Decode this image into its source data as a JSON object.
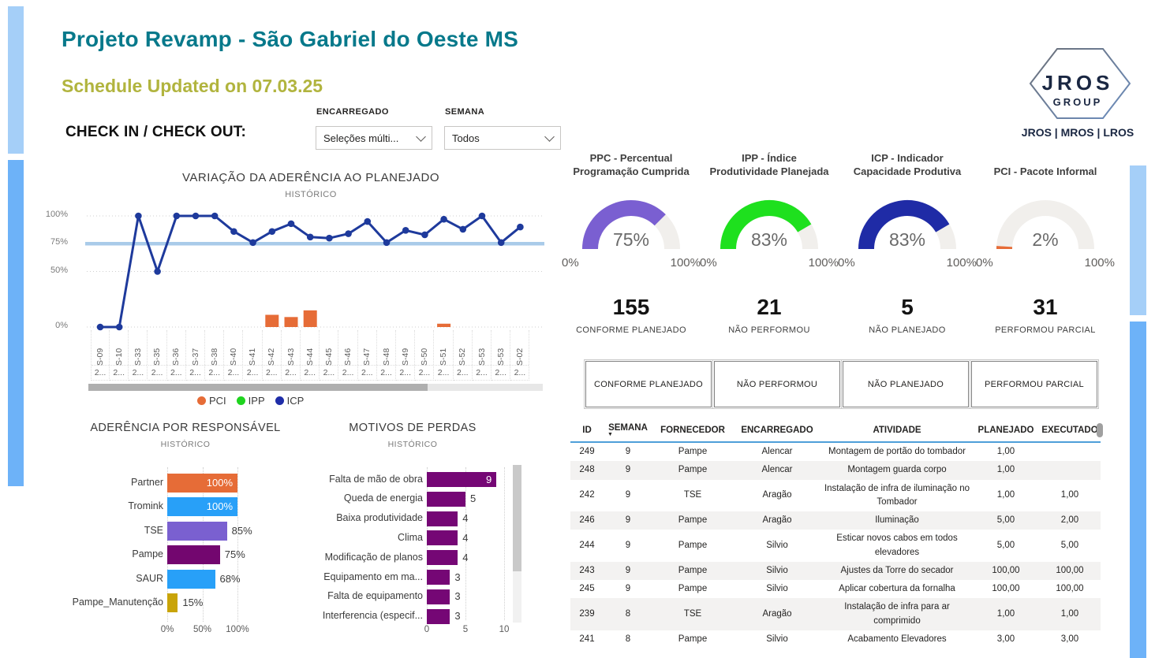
{
  "header": {
    "title": "Projeto Revamp - São Gabriel do Oeste MS",
    "subtitle": "Schedule Updated on 07.03.25",
    "check_label": "CHECK IN / CHECK OUT:"
  },
  "filters": [
    {
      "label": "ENCARREGADO",
      "value": "Seleções múlti..."
    },
    {
      "label": "SEMANA",
      "value": "Todos"
    }
  ],
  "logo": {
    "line1": "JROS",
    "line2": "GROUP",
    "line3": "JROS | MROS | LROS"
  },
  "chart_data": [
    {
      "type": "line",
      "title": "VARIAÇÃO DA ADERÊNCIA AO PLANEJADO",
      "subtitle": "HISTÓRICO",
      "categories": [
        "S-09",
        "S-10",
        "S-33",
        "S-35",
        "S-36",
        "S-37",
        "S-38",
        "S-40",
        "S-41",
        "S-42",
        "S-43",
        "S-44",
        "S-45",
        "S-46",
        "S-47",
        "S-48",
        "S-49",
        "S-50",
        "S-51",
        "S-52",
        "S-53",
        "S-53",
        "S-02"
      ],
      "category_sublabel": "2...",
      "series": [
        {
          "name": "ICP",
          "type": "line",
          "color": "#1E3A9C",
          "values": [
            0,
            0,
            100,
            50,
            100,
            100,
            100,
            86,
            76,
            86,
            93,
            81,
            80,
            84,
            95,
            76,
            87,
            83,
            97,
            88,
            100,
            76,
            90
          ]
        },
        {
          "name": "PCI",
          "type": "bar",
          "color": "#E66C37",
          "values": [
            null,
            null,
            null,
            null,
            null,
            null,
            null,
            null,
            null,
            11,
            9,
            15,
            null,
            null,
            null,
            null,
            null,
            null,
            3,
            null,
            null,
            null,
            null
          ]
        },
        {
          "name": "IPP",
          "type": "line",
          "color": "#1FD41F",
          "values": []
        }
      ],
      "legend": [
        {
          "label": "PCI",
          "color": "#E66C37"
        },
        {
          "label": "IPP",
          "color": "#1FD41F"
        },
        {
          "label": "ICP",
          "color": "#1F2DA8"
        }
      ],
      "yticks": [
        {
          "value": 100,
          "label": "100%"
        },
        {
          "value": 50,
          "label": "50%"
        },
        {
          "value": 0,
          "label": "0%"
        }
      ],
      "ref_line": {
        "value": 75,
        "label": "75%",
        "color": "#A9CBE9"
      },
      "ylim": [
        0,
        100
      ]
    },
    {
      "type": "bar",
      "orientation": "horizontal",
      "title": "ADERÊNCIA POR RESPONSÁVEL",
      "subtitle": "HISTÓRICO",
      "categories": [
        "Partner",
        "Tromink",
        "TSE",
        "Pampe",
        "SAUR",
        "Pampe_Manutenção"
      ],
      "values": [
        100,
        100,
        85,
        75,
        68,
        15
      ],
      "value_labels": [
        "100%",
        "100%",
        "85%",
        "75%",
        "68%",
        "15%"
      ],
      "bar_colors": [
        "#E66C37",
        "#28A0F8",
        "#7A60D0",
        "#73066F",
        "#28A0F8",
        "#C9A408"
      ],
      "xticks": [
        {
          "value": 0,
          "label": "0%"
        },
        {
          "value": 50,
          "label": "50%"
        },
        {
          "value": 100,
          "label": "100%"
        }
      ],
      "xlim": [
        0,
        100
      ],
      "inside_label_indexes": [
        0,
        1
      ]
    },
    {
      "type": "bar",
      "orientation": "horizontal",
      "title": "MOTIVOS DE PERDAS",
      "subtitle": "HISTÓRICO",
      "categories": [
        "Falta de mão de obra",
        "Queda de energia",
        "Baixa produtividade",
        "Clima",
        "Modificação de planos",
        "Equipamento em ma...",
        "Falta de equipamento",
        "Interferencia (especif..."
      ],
      "values": [
        9,
        5,
        4,
        4,
        4,
        3,
        3,
        3
      ],
      "value_labels": [
        "9",
        "5",
        "4",
        "4",
        "4",
        "3",
        "3",
        "3"
      ],
      "bar_colors": [
        "#750775",
        "#750775",
        "#750775",
        "#750775",
        "#750775",
        "#750775",
        "#750775",
        "#750775"
      ],
      "xticks": [
        {
          "value": 0,
          "label": "0"
        },
        {
          "value": 5,
          "label": "5"
        },
        {
          "value": 10,
          "label": "10"
        }
      ],
      "xlim": [
        0,
        10
      ],
      "inside_label_indexes": [
        0
      ]
    }
  ],
  "gauges": [
    {
      "title_line1": "PPC - Percentual",
      "title_line2": "Programação Cumprida",
      "value": 75,
      "value_label": "75%",
      "color": "#7A5FD1",
      "min_label": "0%",
      "max_label": "100%"
    },
    {
      "title_line1": "IPP - Índice",
      "title_line2": "Produtividade Planejada",
      "value": 83,
      "value_label": "83%",
      "color": "#1EE01E",
      "min_label": "0%",
      "max_label": "100%"
    },
    {
      "title_line1": "ICP - Indicador",
      "title_line2": "Capacidade Produtiva",
      "value": 83,
      "value_label": "83%",
      "color": "#1F2BA6",
      "min_label": "0%",
      "max_label": "100%"
    },
    {
      "title_line1": "",
      "title_line2": "PCI - Pacote Informal",
      "value": 2,
      "value_label": "2%",
      "color": "#E66C37",
      "min_label": "0%",
      "max_label": "100%"
    }
  ],
  "cards": [
    {
      "value": "155",
      "label": "CONFORME PLANEJADO"
    },
    {
      "value": "21",
      "label": "NÃO PERFORMOU"
    },
    {
      "value": "5",
      "label": "NÃO PLANEJADO"
    },
    {
      "value": "31",
      "label": "PERFORMOU PARCIAL"
    }
  ],
  "buttons": [
    "CONFORME PLANEJADO",
    "NÃO PERFORMOU",
    "NÃO PLANEJADO",
    "PERFORMOU PARCIAL"
  ],
  "table": {
    "columns": [
      "ID",
      "SEMANA",
      "FORNECEDOR",
      "ENCARREGADO",
      "ATIVIDADE",
      "PLANEJADO",
      "EXECUTADO"
    ],
    "sorted_column": "SEMANA",
    "rows": [
      [
        "249",
        "9",
        "Pampe",
        "Alencar",
        "Montagem de portão do tombador",
        "1,00",
        ""
      ],
      [
        "248",
        "9",
        "Pampe",
        "Alencar",
        "Montagem guarda corpo",
        "1,00",
        ""
      ],
      [
        "242",
        "9",
        "TSE",
        "Aragão",
        "Instalação de infra de iluminação no Tombador",
        "1,00",
        "1,00"
      ],
      [
        "246",
        "9",
        "Pampe",
        "Aragão",
        "Iluminação",
        "5,00",
        "2,00"
      ],
      [
        "244",
        "9",
        "Pampe",
        "Silvio",
        "Esticar novos cabos em todos elevadores",
        "5,00",
        "5,00"
      ],
      [
        "243",
        "9",
        "Pampe",
        "Silvio",
        "Ajustes da Torre do secador",
        "100,00",
        "100,00"
      ],
      [
        "245",
        "9",
        "Pampe",
        "Silvio",
        "Aplicar cobertura da fornalha",
        "100,00",
        "100,00"
      ],
      [
        "239",
        "8",
        "TSE",
        "Aragão",
        "Instalação de infra para ar comprimido",
        "1,00",
        "1,00"
      ],
      [
        "241",
        "8",
        "Pampe",
        "Silvio",
        "Acabamento Elevadores",
        "3,00",
        "3,00"
      ]
    ]
  },
  "colors": {
    "title_teal": "#07798B",
    "subtitle_olive": "#B1B43E",
    "side_bar_light": "#A5CFF8",
    "side_bar_main": "#6DB2F8",
    "gauge_track": "#F1EFEC",
    "table_alt_row": "#F3F2F1",
    "table_header_border": "#4E9FD9"
  }
}
